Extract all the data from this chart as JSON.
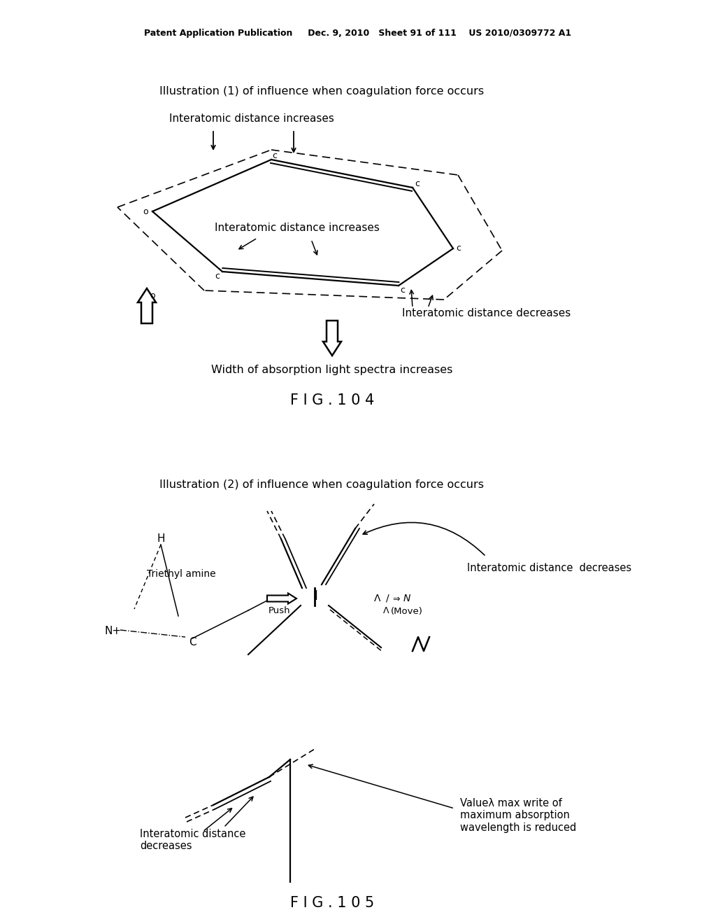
{
  "bg_color": "#ffffff",
  "header_text": "Patent Application Publication     Dec. 9, 2010   Sheet 91 of 111    US 2010/0309772 A1",
  "fig104_title": "Illustration (1) of influence when coagulation force occurs",
  "fig104_label": "F I G . 1 0 4",
  "fig104_subtitle": "Interatomic distance increases",
  "fig104_center_label": "Interatomic distance increases",
  "fig104_bottom_label": "Width of absorption light spectra increases",
  "fig104_dec_label": "Interatomic distance decreases",
  "fig105_title": "Illustration (2) of influence when coagulation force occurs",
  "fig105_label": "F I G . 1 0 5",
  "fig105_dec1": "Interatomic distance  decreases",
  "fig105_dec2": "Interatomic distance\ndecreases",
  "fig105_value": "Valueλ max write of\nmaximum absorption\nwavelength is reduced",
  "fig105_triethyl": "Triethyl amine",
  "fig105_push": "Push",
  "fig105_move": "(Move)",
  "fig105_h": "H",
  "fig105_n": "N+",
  "fig105_c": "C"
}
